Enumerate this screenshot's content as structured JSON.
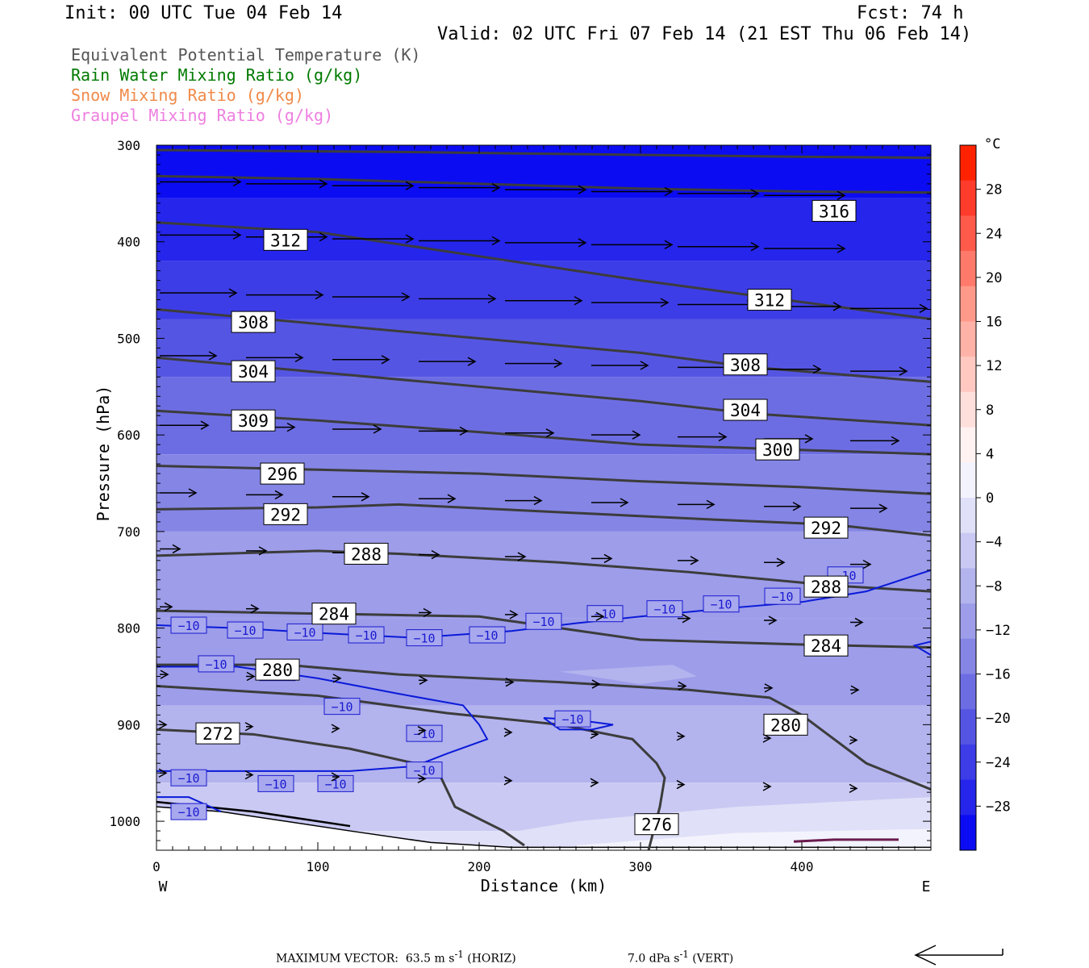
{
  "header": {
    "init": "Init: 00 UTC Tue 04 Feb 14",
    "fcst": "Fcst:   74 h",
    "valid": "Valid: 02 UTC Fri 07 Feb 14 (21 EST Thu 06 Feb 14)"
  },
  "legend": [
    {
      "label": "Equivalent Potential Temperature (K)",
      "color": "#555555"
    },
    {
      "label": "Rain Water Mixing Ratio (g/kg)",
      "color": "#007a00"
    },
    {
      "label": "Snow Mixing Ratio (g/kg)",
      "color": "#f08a4b"
    },
    {
      "label": "Graupel Mixing Ratio (g/kg)",
      "color": "#ee7fe0"
    }
  ],
  "footer": {
    "max_vector_label": "MAXIMUM VECTOR:",
    "max_vector_horiz_value": "63.5",
    "max_vector_horiz_unit": "m s",
    "max_vector_horiz_tag": "(HORIZ)",
    "max_vector_vert_value": "7.0",
    "max_vector_vert_unit": "dPa s",
    "max_vector_vert_tag": "(VERT)",
    "unit_exponent": "-1"
  },
  "chart_data": {
    "type": "cross-section",
    "xlabel": "Distance (km)",
    "ylabel": "Pressure (hPa)",
    "x_ticks": [
      0,
      100,
      200,
      300,
      400
    ],
    "xlim": [
      0,
      480
    ],
    "y_ticks": [
      300,
      400,
      500,
      600,
      700,
      800,
      900,
      1000
    ],
    "ylim": [
      300,
      1030
    ],
    "y_scale": "linear-pressure-inverted",
    "x_end_labels": {
      "left": "W",
      "right": "E"
    },
    "colorbar": {
      "unit": "°C",
      "tick_labels": [
        "28",
        "24",
        "20",
        "16",
        "12",
        "8",
        "4",
        "0",
        "−4",
        "−8",
        "−12",
        "−16",
        "−20",
        "−24",
        "−28"
      ],
      "tick_values": [
        28,
        24,
        20,
        16,
        12,
        8,
        4,
        0,
        -4,
        -8,
        -12,
        -16,
        -20,
        -24,
        -28
      ],
      "range": [
        -32,
        32
      ],
      "colors_warm": [
        "#ff2200",
        "#ff3b2b",
        "#ff5a4a",
        "#ff7a6a",
        "#ff9a8a",
        "#ffb3a8",
        "#ffc9c2",
        "#ffdfdb",
        "#fff2f0"
      ],
      "colors_cold": [
        "#f3f3fd",
        "#e0e0f8",
        "#c9c9f3",
        "#b3b3ee",
        "#9d9dea",
        "#8585e6",
        "#6d6de3",
        "#5555e4",
        "#3d3de7",
        "#2525ec",
        "#0c0cf2"
      ]
    },
    "theta_e_contours": [
      {
        "label": "316",
        "points": [
          [
            0,
            305
          ],
          [
            150,
            307
          ],
          [
            300,
            310
          ],
          [
            400,
            312
          ],
          [
            480,
            313
          ]
        ]
      },
      {
        "label": "316",
        "points": [
          [
            0,
            332
          ],
          [
            100,
            335
          ],
          [
            200,
            340
          ],
          [
            300,
            345
          ],
          [
            400,
            348
          ],
          [
            480,
            349
          ]
        ]
      },
      {
        "label": "312",
        "points": [
          [
            0,
            380
          ],
          [
            100,
            390
          ],
          [
            200,
            415
          ],
          [
            300,
            440
          ],
          [
            380,
            458
          ],
          [
            480,
            480
          ]
        ]
      },
      {
        "label": "308",
        "points": [
          [
            0,
            470
          ],
          [
            100,
            485
          ],
          [
            200,
            500
          ],
          [
            300,
            515
          ],
          [
            370,
            530
          ],
          [
            480,
            545
          ]
        ]
      },
      {
        "label": "304",
        "points": [
          [
            0,
            520
          ],
          [
            100,
            535
          ],
          [
            200,
            550
          ],
          [
            300,
            565
          ],
          [
            370,
            578
          ],
          [
            480,
            590
          ]
        ]
      },
      {
        "label": "300",
        "points": [
          [
            0,
            575
          ],
          [
            100,
            585
          ],
          [
            200,
            597
          ],
          [
            300,
            610
          ],
          [
            390,
            615
          ],
          [
            480,
            620
          ]
        ]
      },
      {
        "label": "296",
        "points": [
          [
            0,
            632
          ],
          [
            100,
            636
          ],
          [
            200,
            640
          ],
          [
            300,
            648
          ],
          [
            400,
            654
          ],
          [
            480,
            661
          ]
        ]
      },
      {
        "label": "292",
        "points": [
          [
            0,
            677
          ],
          [
            100,
            675
          ],
          [
            150,
            672
          ],
          [
            250,
            680
          ],
          [
            350,
            688
          ],
          [
            420,
            693
          ],
          [
            480,
            704
          ]
        ]
      },
      {
        "label": "288",
        "points": [
          [
            0,
            725
          ],
          [
            100,
            720
          ],
          [
            150,
            723
          ],
          [
            250,
            732
          ],
          [
            330,
            742
          ],
          [
            420,
            756
          ],
          [
            480,
            762
          ]
        ]
      },
      {
        "label": "284",
        "points": [
          [
            0,
            782
          ],
          [
            100,
            785
          ],
          [
            200,
            788
          ],
          [
            250,
            800
          ],
          [
            300,
            812
          ],
          [
            400,
            817
          ],
          [
            480,
            820
          ]
        ]
      },
      {
        "label": "280",
        "points": [
          [
            0,
            838
          ],
          [
            80,
            838
          ],
          [
            150,
            848
          ],
          [
            250,
            856
          ],
          [
            330,
            864
          ],
          [
            380,
            872
          ],
          [
            400,
            890
          ],
          [
            440,
            940
          ],
          [
            480,
            967
          ]
        ]
      },
      {
        "label": "272",
        "points": [
          [
            0,
            905
          ],
          [
            60,
            910
          ],
          [
            120,
            925
          ],
          [
            160,
            940
          ],
          [
            175,
            950
          ],
          [
            185,
            985
          ],
          [
            215,
            1010
          ],
          [
            228,
            1025
          ]
        ]
      },
      {
        "label": "276",
        "points": [
          [
            0,
            860
          ],
          [
            100,
            870
          ],
          [
            180,
            888
          ],
          [
            250,
            900
          ],
          [
            295,
            915
          ],
          [
            310,
            940
          ],
          [
            315,
            955
          ],
          [
            312,
            985
          ],
          [
            305,
            1030
          ]
        ]
      }
    ],
    "minus10_isotherm_labels": [
      "−10",
      "−10",
      "−10",
      "−10",
      "−10",
      "−10",
      "−10",
      "−10",
      "−10",
      "−10",
      "−10",
      "−10",
      "−10",
      "−10",
      "−10",
      "−10",
      "−10",
      "−10",
      "−10",
      "−10",
      "−10",
      "−10",
      "−10",
      "−10",
      "−10",
      "−10"
    ],
    "label_texts": [
      "316",
      "312",
      "312",
      "308",
      "308",
      "304",
      "304",
      "309",
      "300",
      "296",
      "292",
      "292",
      "288",
      "288",
      "284",
      "284",
      "280",
      "280",
      "272",
      "276"
    ]
  }
}
